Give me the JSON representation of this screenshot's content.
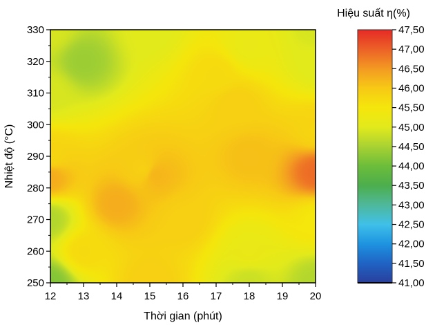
{
  "chart_data": {
    "type": "heatmap",
    "xlabel": "Thời gian (phút)",
    "ylabel": "Nhiệt độ (°C)",
    "xlim": [
      12,
      20
    ],
    "ylim": [
      250,
      330
    ],
    "x_ticks": [
      12,
      13,
      14,
      15,
      16,
      17,
      18,
      19,
      20
    ],
    "y_ticks": [
      250,
      260,
      270,
      280,
      290,
      300,
      310,
      320,
      330
    ],
    "colorbar": {
      "title": "Hiệu suất η(%)",
      "min": 41.0,
      "max": 47.5,
      "tick_labels": [
        "41,00",
        "41,50",
        "42,00",
        "42,50",
        "43,00",
        "43,50",
        "44,00",
        "44,50",
        "45,00",
        "45,50",
        "46,00",
        "46,50",
        "47,00",
        "47,50"
      ],
      "tick_values": [
        41.0,
        41.5,
        42.0,
        42.5,
        43.0,
        43.5,
        44.0,
        44.5,
        45.0,
        45.5,
        46.0,
        46.5,
        47.0,
        47.5
      ],
      "colors": [
        "#2a3f9c",
        "#1f63c4",
        "#1e93e0",
        "#3fc0e8",
        "#4fb89b",
        "#4cae4c",
        "#6cbd3a",
        "#a8d232",
        "#e2ea1c",
        "#f5e60c",
        "#f7c915",
        "#f39a22",
        "#ec6127",
        "#e52a26"
      ]
    },
    "points": [
      {
        "x": 12,
        "y": 250,
        "v": 44.2
      },
      {
        "x": 12,
        "y": 270,
        "v": 44.6
      },
      {
        "x": 12,
        "y": 283,
        "v": 46.3
      },
      {
        "x": 12,
        "y": 290,
        "v": 45.8
      },
      {
        "x": 12,
        "y": 310,
        "v": 44.9
      },
      {
        "x": 12,
        "y": 330,
        "v": 44.9
      },
      {
        "x": 13,
        "y": 320,
        "v": 44.4
      },
      {
        "x": 13,
        "y": 260,
        "v": 45.7
      },
      {
        "x": 14,
        "y": 275,
        "v": 46.3
      },
      {
        "x": 15,
        "y": 330,
        "v": 45.0
      },
      {
        "x": 15,
        "y": 250,
        "v": 45.9
      },
      {
        "x": 14.8,
        "y": 286,
        "v": 45.9
      },
      {
        "x": 15.2,
        "y": 284,
        "v": 46.2
      },
      {
        "x": 16,
        "y": 270,
        "v": 45.9
      },
      {
        "x": 17,
        "y": 316,
        "v": 45.7
      },
      {
        "x": 17.6,
        "y": 306,
        "v": 45.9
      },
      {
        "x": 18,
        "y": 290,
        "v": 46.1
      },
      {
        "x": 18,
        "y": 260,
        "v": 45.2
      },
      {
        "x": 18,
        "y": 250,
        "v": 44.8
      },
      {
        "x": 20,
        "y": 250,
        "v": 44.6
      },
      {
        "x": 20,
        "y": 270,
        "v": 45.5
      },
      {
        "x": 20,
        "y": 285,
        "v": 46.9
      },
      {
        "x": 20,
        "y": 298,
        "v": 45.8
      },
      {
        "x": 20,
        "y": 320,
        "v": 45.0
      },
      {
        "x": 20,
        "y": 330,
        "v": 44.9
      },
      {
        "x": 18,
        "y": 325,
        "v": 45.2
      }
    ]
  }
}
